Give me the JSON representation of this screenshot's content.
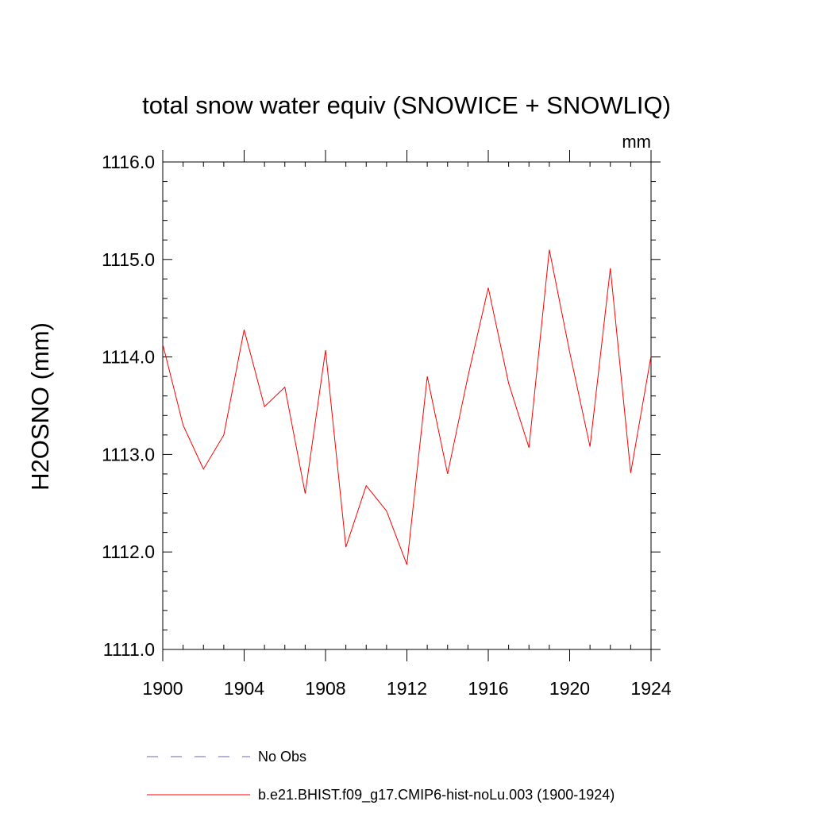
{
  "chart_data": {
    "type": "line",
    "title": "total snow water equiv (SNOWICE + SNOWLIQ)",
    "units": "mm",
    "ylabel": "H2OSNO  (mm)",
    "xlabel": "",
    "xlim": [
      1900,
      1924
    ],
    "ylim": [
      1111.0,
      1116.0
    ],
    "xticks": [
      "1900",
      "1904",
      "1908",
      "1912",
      "1916",
      "1920",
      "1924"
    ],
    "yticks": [
      "1111.0",
      "1112.0",
      "1113.0",
      "1114.0",
      "1115.0",
      "1116.0"
    ],
    "series": [
      {
        "name": "b.e21.BHIST.f09_g17.CMIP6-hist-noLu.003 (1900-1924)",
        "color": "#ff0000",
        "x": [
          1900,
          1901,
          1902,
          1903,
          1904,
          1905,
          1906,
          1907,
          1908,
          1909,
          1910,
          1911,
          1912,
          1913,
          1914,
          1915,
          1916,
          1917,
          1918,
          1919,
          1920,
          1921,
          1922,
          1923,
          1924
        ],
        "values": [
          1114.13,
          1113.3,
          1112.85,
          1113.2,
          1114.28,
          1113.49,
          1113.69,
          1112.6,
          1114.07,
          1112.05,
          1112.68,
          1112.42,
          1111.87,
          1113.8,
          1112.8,
          1113.8,
          1114.71,
          1113.73,
          1113.07,
          1115.1,
          1114.05,
          1113.08,
          1114.91,
          1112.81,
          1114.01
        ]
      }
    ],
    "legend": [
      {
        "label": "No Obs",
        "style": "dashed",
        "color": "#6666bb"
      },
      {
        "label": "b.e21.BHIST.f09_g17.CMIP6-hist-noLu.003 (1900-1924)",
        "style": "solid",
        "color": "#ff0000"
      }
    ]
  }
}
